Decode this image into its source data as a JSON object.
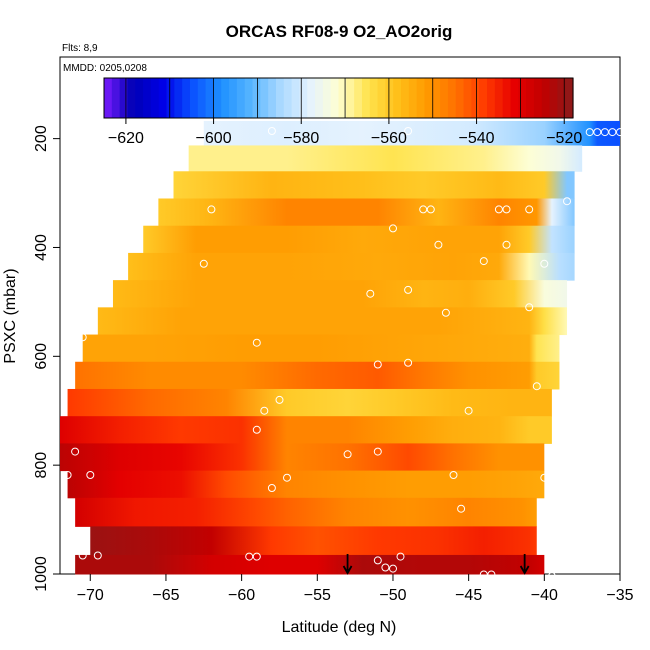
{
  "chart_data": {
    "type": "heatmap",
    "title": "ORCAS RF08-9 O2_AO2orig",
    "notes": [
      "Flts: 8,9",
      "MMDD: 0205,0208"
    ],
    "xlabel": "Latitude (deg N)",
    "ylabel": "PSXC (mbar)",
    "xlim": [
      -72,
      -35
    ],
    "ylim": [
      1000,
      50
    ],
    "y_reversed": true,
    "grid": false,
    "x_ticks": [
      -70,
      -65,
      -60,
      -55,
      -50,
      -45,
      -40,
      -35
    ],
    "y_ticks": [
      200,
      400,
      600,
      800,
      1000
    ],
    "colorbar": {
      "range": [
        -625,
        -518
      ],
      "ticks": [
        -620,
        -600,
        -580,
        -560,
        -540,
        -520
      ],
      "colors": [
        "#7A1CFF",
        "#0000B5",
        "#0000E6",
        "#0A50FF",
        "#1E90FF",
        "#56B4FF",
        "#A8D8FF",
        "#E4F2FF",
        "#FFFFD2",
        "#FFE34D",
        "#FFC01A",
        "#FF9A00",
        "#FF7000",
        "#FF3A00",
        "#E60000",
        "#C00000",
        "#8B1A1A"
      ]
    },
    "bands": [
      {
        "p": 190,
        "lat_start": -62.5,
        "lat_end": -35,
        "stops": [
          [
            -62.5,
            -578
          ],
          [
            -57,
            -579
          ],
          [
            -52,
            -578
          ],
          [
            -45,
            -580
          ],
          [
            -40,
            -586
          ],
          [
            -37,
            -598
          ],
          [
            -36.5,
            -604
          ],
          [
            -35,
            -605
          ]
        ]
      },
      {
        "p": 235,
        "lat_start": -63.5,
        "lat_end": -37.5,
        "stops": [
          [
            -63.5,
            -568
          ],
          [
            -57,
            -568
          ],
          [
            -50,
            -565
          ],
          [
            -44,
            -568
          ],
          [
            -41,
            -572
          ],
          [
            -39,
            -575
          ],
          [
            -37.5,
            -580
          ]
        ]
      },
      {
        "p": 285,
        "lat_start": -64.5,
        "lat_end": -38,
        "stops": [
          [
            -64.5,
            -562
          ],
          [
            -58,
            -556
          ],
          [
            -52,
            -558
          ],
          [
            -48,
            -560
          ],
          [
            -43,
            -557
          ],
          [
            -40,
            -560
          ],
          [
            -38.5,
            -588
          ]
        ]
      },
      {
        "p": 335,
        "lat_start": -65.5,
        "lat_end": -38,
        "stops": [
          [
            -65.5,
            -560
          ],
          [
            -62,
            -556
          ],
          [
            -57,
            -548
          ],
          [
            -51,
            -548
          ],
          [
            -47,
            -556
          ],
          [
            -43,
            -548
          ],
          [
            -40.5,
            -551
          ],
          [
            -39.5,
            -578
          ],
          [
            -38,
            -588
          ]
        ]
      },
      {
        "p": 385,
        "lat_start": -66.5,
        "lat_end": -38,
        "stops": [
          [
            -66.5,
            -560
          ],
          [
            -63,
            -552
          ],
          [
            -57,
            -552
          ],
          [
            -52,
            -554
          ],
          [
            -47,
            -553
          ],
          [
            -43,
            -553
          ],
          [
            -41,
            -560
          ],
          [
            -39.5,
            -582
          ],
          [
            -38,
            -586
          ]
        ]
      },
      {
        "p": 435,
        "lat_start": -67.5,
        "lat_end": -38,
        "stops": [
          [
            -67.5,
            -558
          ],
          [
            -63,
            -553
          ],
          [
            -57,
            -553
          ],
          [
            -51,
            -554
          ],
          [
            -46,
            -553
          ],
          [
            -43,
            -554
          ],
          [
            -41,
            -570
          ],
          [
            -39,
            -583
          ],
          [
            -38,
            -585
          ]
        ]
      },
      {
        "p": 485,
        "lat_start": -68.5,
        "lat_end": -38.5,
        "stops": [
          [
            -68.5,
            -557
          ],
          [
            -63,
            -553
          ],
          [
            -57,
            -553
          ],
          [
            -52,
            -553
          ],
          [
            -48,
            -556
          ],
          [
            -45,
            -555
          ],
          [
            -42,
            -560
          ],
          [
            -40,
            -573
          ],
          [
            -38.5,
            -575
          ]
        ]
      },
      {
        "p": 535,
        "lat_start": -69.5,
        "lat_end": -38.5,
        "stops": [
          [
            -69.5,
            -557
          ],
          [
            -64,
            -553
          ],
          [
            -58,
            -553
          ],
          [
            -53,
            -553
          ],
          [
            -47,
            -553
          ],
          [
            -43,
            -555
          ],
          [
            -41,
            -556
          ],
          [
            -40,
            -564
          ],
          [
            -38.5,
            -570
          ]
        ]
      },
      {
        "p": 585,
        "lat_start": -70.5,
        "lat_end": -39,
        "stops": [
          [
            -70.5,
            -553
          ],
          [
            -66,
            -553
          ],
          [
            -60,
            -552
          ],
          [
            -55,
            -552
          ],
          [
            -50,
            -553
          ],
          [
            -45,
            -554
          ],
          [
            -41,
            -555
          ],
          [
            -40.5,
            -565
          ],
          [
            -39,
            -568
          ]
        ]
      },
      {
        "p": 635,
        "lat_start": -71,
        "lat_end": -39,
        "stops": [
          [
            -71,
            -545
          ],
          [
            -66,
            -549
          ],
          [
            -60,
            -549
          ],
          [
            -55,
            -544
          ],
          [
            -51,
            -542
          ],
          [
            -48,
            -546
          ],
          [
            -45,
            -550
          ],
          [
            -41,
            -552
          ],
          [
            -40.5,
            -560
          ],
          [
            -39,
            -562
          ]
        ]
      },
      {
        "p": 685,
        "lat_start": -71.5,
        "lat_end": -39.5,
        "stops": [
          [
            -71.5,
            -538
          ],
          [
            -66,
            -544
          ],
          [
            -61,
            -548
          ],
          [
            -57,
            -560
          ],
          [
            -53,
            -562
          ],
          [
            -50,
            -560
          ],
          [
            -46,
            -557
          ],
          [
            -42,
            -556
          ],
          [
            -39.5,
            -556
          ]
        ]
      },
      {
        "p": 735,
        "lat_start": -72,
        "lat_end": -39.5,
        "stops": [
          [
            -72,
            -530
          ],
          [
            -68,
            -535
          ],
          [
            -64,
            -538
          ],
          [
            -60,
            -537
          ],
          [
            -57,
            -548
          ],
          [
            -53,
            -548
          ],
          [
            -49,
            -552
          ],
          [
            -46,
            -555
          ],
          [
            -43,
            -556
          ],
          [
            -41,
            -560
          ],
          [
            -39.5,
            -560
          ]
        ]
      },
      {
        "p": 785,
        "lat_start": -72,
        "lat_end": -40,
        "stops": [
          [
            -72,
            -524
          ],
          [
            -68,
            -530
          ],
          [
            -64,
            -532
          ],
          [
            -60,
            -537
          ],
          [
            -57,
            -548
          ],
          [
            -53,
            -545
          ],
          [
            -49,
            -540
          ],
          [
            -46,
            -545
          ],
          [
            -43,
            -550
          ],
          [
            -41,
            -550
          ],
          [
            -40,
            -550
          ]
        ]
      },
      {
        "p": 835,
        "lat_start": -71.5,
        "lat_end": -40,
        "stops": [
          [
            -71.5,
            -524
          ],
          [
            -68,
            -531
          ],
          [
            -64,
            -533
          ],
          [
            -61,
            -540
          ],
          [
            -57,
            -548
          ],
          [
            -53,
            -550
          ],
          [
            -49,
            -552
          ],
          [
            -45,
            -552
          ],
          [
            -42,
            -553
          ],
          [
            -40,
            -554
          ]
        ]
      },
      {
        "p": 885,
        "lat_start": -71,
        "lat_end": -40.5,
        "stops": [
          [
            -71,
            -528
          ],
          [
            -67,
            -534
          ],
          [
            -63,
            -535
          ],
          [
            -59,
            -540
          ],
          [
            -57,
            -543
          ],
          [
            -53,
            -548
          ],
          [
            -49,
            -550
          ],
          [
            -45,
            -548
          ],
          [
            -41.5,
            -550
          ],
          [
            -40.5,
            -552
          ]
        ]
      },
      {
        "p": 940,
        "lat_start": -70,
        "lat_end": -40.5,
        "stops": [
          [
            -70,
            -520
          ],
          [
            -66,
            -522
          ],
          [
            -62,
            -525
          ],
          [
            -58,
            -538
          ],
          [
            -55,
            -541
          ],
          [
            -51,
            -538
          ],
          [
            -47,
            -537
          ],
          [
            -44,
            -535
          ],
          [
            -41,
            -537
          ],
          [
            -40.5,
            -538
          ]
        ]
      },
      {
        "p": 990,
        "lat_start": -71,
        "lat_end": -40,
        "stops": [
          [
            -71,
            -522
          ],
          [
            -66,
            -522
          ],
          [
            -62,
            -528
          ],
          [
            -58,
            -530
          ],
          [
            -55,
            -530
          ],
          [
            -52,
            -522
          ],
          [
            -48,
            -523
          ],
          [
            -45,
            -523
          ],
          [
            -41,
            -525
          ],
          [
            -40,
            -528
          ]
        ]
      }
    ],
    "points": [
      [
        -58,
        186
      ],
      [
        -49,
        186
      ],
      [
        -37,
        188
      ],
      [
        -36.5,
        188
      ],
      [
        -36,
        188
      ],
      [
        -35.5,
        188
      ],
      [
        -35,
        188
      ],
      [
        -62,
        330
      ],
      [
        -48,
        330
      ],
      [
        -47.5,
        330
      ],
      [
        -43,
        330
      ],
      [
        -42.5,
        330
      ],
      [
        -41,
        330
      ],
      [
        -38.5,
        315
      ],
      [
        -50,
        365
      ],
      [
        -47,
        395
      ],
      [
        -42.5,
        395
      ],
      [
        -44,
        425
      ],
      [
        -62.5,
        430
      ],
      [
        -40,
        430
      ],
      [
        -51.5,
        485
      ],
      [
        -49,
        478
      ],
      [
        -41,
        510
      ],
      [
        -46.5,
        520
      ],
      [
        -70.5,
        565
      ],
      [
        -59,
        575
      ],
      [
        -51,
        615
      ],
      [
        -49,
        612
      ],
      [
        -40.5,
        655
      ],
      [
        -57.5,
        680
      ],
      [
        -58.5,
        700
      ],
      [
        -45,
        700
      ],
      [
        -59,
        735
      ],
      [
        -71,
        775
      ],
      [
        -53,
        780
      ],
      [
        -51,
        775
      ],
      [
        -71.5,
        818
      ],
      [
        -70,
        818
      ],
      [
        -57,
        823
      ],
      [
        -46,
        818
      ],
      [
        -40,
        823
      ],
      [
        -58,
        842
      ],
      [
        -45.5,
        880
      ],
      [
        -39.5,
        910
      ],
      [
        -70.5,
        966
      ],
      [
        -69.5,
        966
      ],
      [
        -59.5,
        968
      ],
      [
        -59,
        968
      ],
      [
        -51,
        975
      ],
      [
        -49.5,
        968
      ],
      [
        -50.5,
        988
      ],
      [
        -50,
        990
      ],
      [
        -44,
        1001
      ],
      [
        -43.5,
        1001
      ],
      [
        -39.5,
        1004
      ]
    ],
    "arrows_x": [
      -53,
      -41.3
    ]
  }
}
